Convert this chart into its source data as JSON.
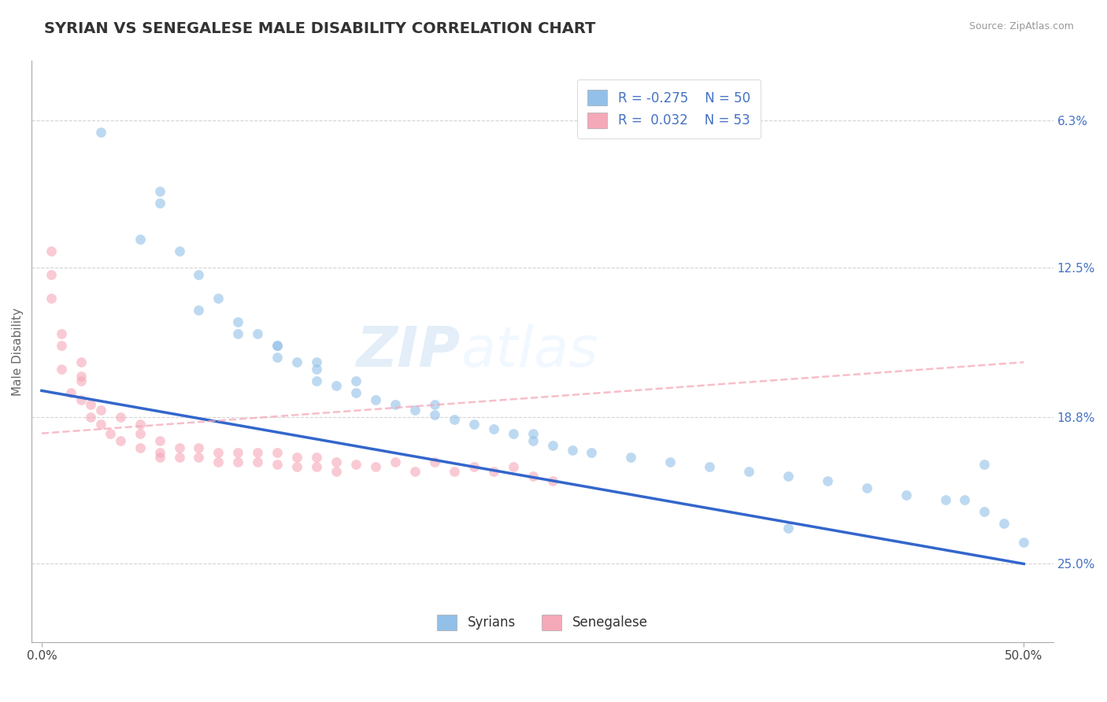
{
  "title": "SYRIAN VS SENEGALESE MALE DISABILITY CORRELATION CHART",
  "source": "Source: ZipAtlas.com",
  "ylabel": "Male Disability",
  "xlim": [
    -0.005,
    0.515
  ],
  "ylim": [
    0.03,
    0.275
  ],
  "yticks": [
    0.063,
    0.125,
    0.188,
    0.25
  ],
  "xticks": [
    0.0,
    0.5
  ],
  "xtick_labels": [
    "0.0%",
    "50.0%"
  ],
  "right_ytick_labels": [
    "25.0%",
    "18.8%",
    "12.5%",
    "6.3%"
  ],
  "syrians_color": "#92c0e8",
  "senegalese_color": "#f5a8b8",
  "syrian_trend_color": "#3366cc",
  "senegalese_trend_color": "#f5a8b8",
  "background_color": "#ffffff",
  "grid_color": "#d0d0d0",
  "syrians_x": [
    0.03,
    0.06,
    0.07,
    0.08,
    0.09,
    0.1,
    0.11,
    0.12,
    0.12,
    0.13,
    0.14,
    0.14,
    0.15,
    0.16,
    0.17,
    0.18,
    0.19,
    0.2,
    0.21,
    0.22,
    0.23,
    0.24,
    0.25,
    0.26,
    0.27,
    0.28,
    0.3,
    0.32,
    0.34,
    0.36,
    0.38,
    0.4,
    0.42,
    0.44,
    0.46,
    0.48,
    0.49,
    0.5,
    0.05,
    0.06,
    0.08,
    0.1,
    0.12,
    0.14,
    0.16,
    0.2,
    0.25,
    0.47,
    0.48,
    0.38
  ],
  "syrians_y": [
    0.245,
    0.215,
    0.195,
    0.185,
    0.175,
    0.165,
    0.16,
    0.155,
    0.15,
    0.148,
    0.145,
    0.14,
    0.138,
    0.135,
    0.132,
    0.13,
    0.128,
    0.126,
    0.124,
    0.122,
    0.12,
    0.118,
    0.115,
    0.113,
    0.111,
    0.11,
    0.108,
    0.106,
    0.104,
    0.102,
    0.1,
    0.098,
    0.095,
    0.092,
    0.09,
    0.085,
    0.08,
    0.072,
    0.2,
    0.22,
    0.17,
    0.16,
    0.155,
    0.148,
    0.14,
    0.13,
    0.118,
    0.09,
    0.105,
    0.078
  ],
  "senegalese_x": [
    0.005,
    0.005,
    0.01,
    0.01,
    0.015,
    0.02,
    0.02,
    0.02,
    0.025,
    0.025,
    0.03,
    0.03,
    0.035,
    0.04,
    0.04,
    0.05,
    0.05,
    0.05,
    0.06,
    0.06,
    0.06,
    0.07,
    0.07,
    0.08,
    0.08,
    0.09,
    0.09,
    0.1,
    0.1,
    0.11,
    0.11,
    0.12,
    0.12,
    0.13,
    0.13,
    0.14,
    0.14,
    0.15,
    0.15,
    0.16,
    0.17,
    0.18,
    0.19,
    0.2,
    0.21,
    0.22,
    0.23,
    0.24,
    0.25,
    0.26,
    0.005,
    0.01,
    0.02
  ],
  "senegalese_y": [
    0.195,
    0.185,
    0.155,
    0.145,
    0.135,
    0.148,
    0.14,
    0.132,
    0.13,
    0.125,
    0.128,
    0.122,
    0.118,
    0.125,
    0.115,
    0.122,
    0.118,
    0.112,
    0.115,
    0.11,
    0.108,
    0.112,
    0.108,
    0.112,
    0.108,
    0.11,
    0.106,
    0.11,
    0.106,
    0.11,
    0.106,
    0.11,
    0.105,
    0.108,
    0.104,
    0.108,
    0.104,
    0.106,
    0.102,
    0.105,
    0.104,
    0.106,
    0.102,
    0.106,
    0.102,
    0.104,
    0.102,
    0.104,
    0.1,
    0.098,
    0.175,
    0.16,
    0.142
  ],
  "watermark_zip": "ZIP",
  "watermark_atlas": "atlas",
  "title_fontsize": 14,
  "label_fontsize": 11,
  "tick_fontsize": 11,
  "legend_fontsize": 12,
  "marker_size": 85,
  "scatter_alpha": 0.6
}
